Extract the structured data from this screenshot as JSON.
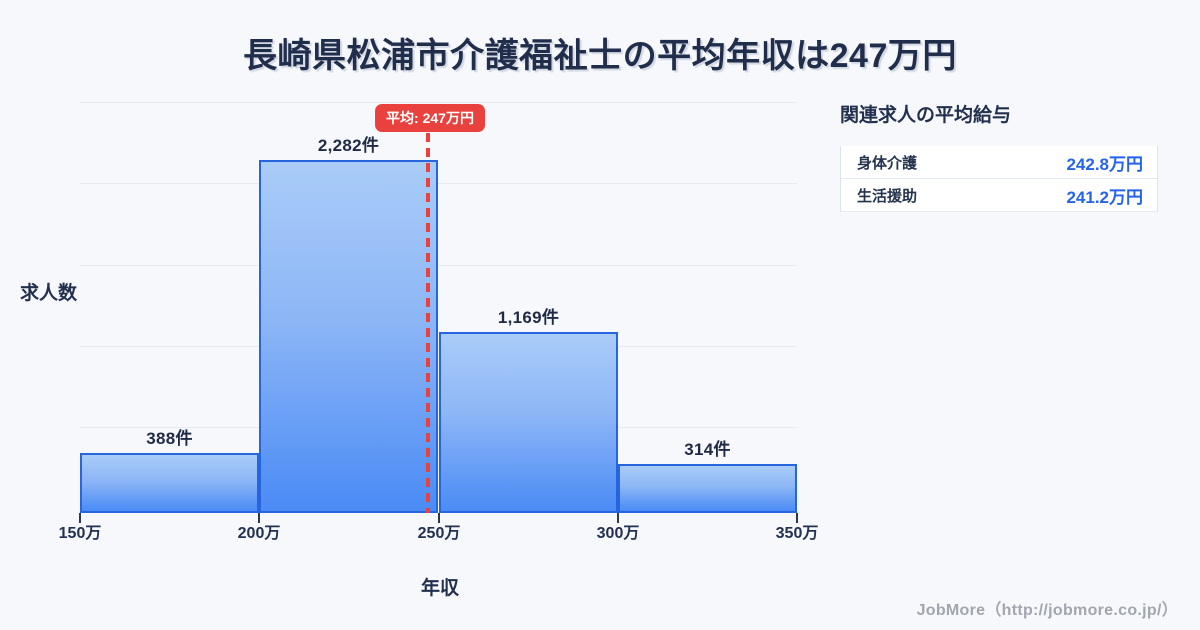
{
  "page": {
    "background": "#f7f8fc",
    "title": "長崎県松浦市介護福祉士の平均年収は247万円",
    "footer": "JobMore（http://jobmore.co.jp/）"
  },
  "chart_data": {
    "type": "bar",
    "title": "長崎県松浦市介護福祉士の平均年収は247万円",
    "xlabel": "年収",
    "ylabel": "求人数",
    "x_tick_labels": [
      "150万",
      "200万",
      "250万",
      "300万",
      "350万"
    ],
    "bin_edges_man_yen": [
      150,
      200,
      250,
      300,
      350
    ],
    "categories": [
      "150万-200万",
      "200万-250万",
      "250万-300万",
      "300万-350万"
    ],
    "values": [
      388,
      2282,
      1169,
      314
    ],
    "bar_labels": [
      "388件",
      "2,282件",
      "1,169件",
      "314件"
    ],
    "average_line": {
      "label": "平均: 247万円",
      "value_man_yen": 247
    },
    "x_range_man_yen": [
      150,
      350
    ],
    "grid": "horizontal",
    "colors": {
      "bar_fill_top": "#a9ccf8",
      "bar_fill_bottom": "#4a8bf5",
      "bar_border": "#2765de",
      "average_accent": "#e8413e",
      "gridline": "#e6ebf2",
      "text_navy": "#22304e"
    }
  },
  "side_panel": {
    "title": "関連求人の平均給与",
    "rows": [
      {
        "label": "身体介護",
        "value": "242.8万円"
      },
      {
        "label": "生活援助",
        "value": "241.2万円"
      }
    ]
  }
}
